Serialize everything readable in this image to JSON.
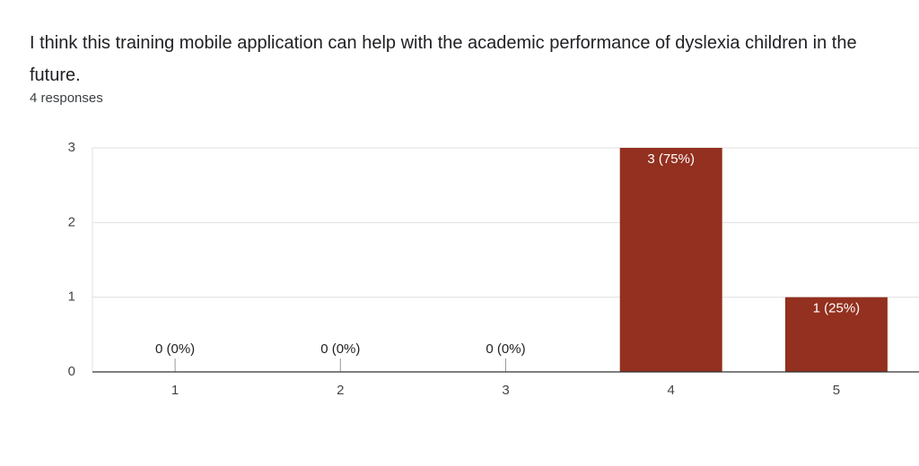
{
  "chart_data": {
    "type": "bar",
    "title": "I think this training mobile application can help with the academic performance of dyslexia children in the future.",
    "subtitle": "4 responses",
    "categories": [
      "1",
      "2",
      "3",
      "4",
      "5"
    ],
    "values": [
      0,
      0,
      0,
      3,
      1
    ],
    "value_labels": [
      "0 (0%)",
      "0 (0%)",
      "0 (0%)",
      "3 (75%)",
      "1 (25%)"
    ],
    "color": "#93301f",
    "ylim": [
      0,
      3
    ],
    "yticks": [
      0,
      1,
      2,
      3
    ],
    "grid": true
  }
}
